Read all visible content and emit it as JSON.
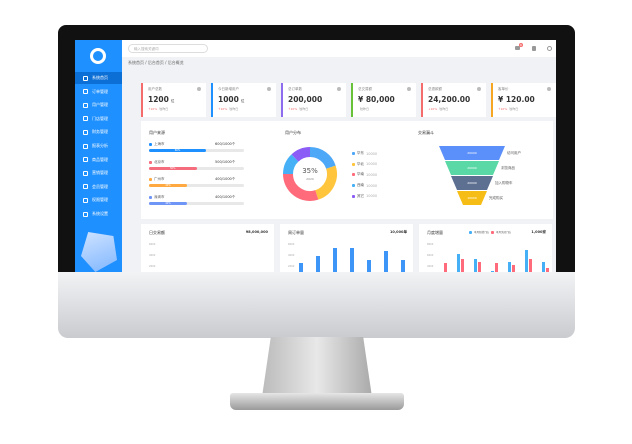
{
  "sidebar": {
    "items": [
      {
        "label": "系统首页"
      },
      {
        "label": "订单管理"
      },
      {
        "label": "用户管理"
      },
      {
        "label": "门店管理"
      },
      {
        "label": "财务管理"
      },
      {
        "label": "报表分析"
      },
      {
        "label": "商品管理"
      },
      {
        "label": "营销管理"
      },
      {
        "label": "会员管理"
      },
      {
        "label": "权限管理"
      },
      {
        "label": "系统设置"
      }
    ],
    "accent": "#1e90ff"
  },
  "header": {
    "search_placeholder": "输入搜索关键词",
    "notification_count": "6"
  },
  "breadcrumb": "系统首页 / 后台首页 / 后台概览",
  "stats": [
    {
      "title": "用户总数",
      "value": "1200",
      "unit": "位",
      "sub": "↑10%",
      "note": "较昨日",
      "color": "#f56c6c"
    },
    {
      "title": "今日新增用户",
      "value": "1000",
      "unit": "位",
      "sub": "↑10%",
      "note": "较昨日",
      "color": "#1e90ff"
    },
    {
      "title": "总订单数",
      "value": "200,000",
      "unit": "",
      "sub": "↑10%",
      "note": "较昨日",
      "color": "#8e6cf0"
    },
    {
      "title": "总交易额",
      "value": "¥ 80,000",
      "unit": "",
      "sub": "",
      "note": "较昨日",
      "color": "#67c23a"
    },
    {
      "title": "总退款额",
      "value": "24,200.00",
      "unit": "",
      "sub": "↓10%",
      "note": "较昨日",
      "color": "#f56c6c"
    },
    {
      "title": "客单价",
      "value": "¥ 120.00",
      "unit": "",
      "sub": "↑10%",
      "note": "较昨日",
      "color": "#f5a623"
    }
  ],
  "sources": {
    "title": "用户来源",
    "items": [
      {
        "label": "上海市",
        "count": "600/1000个",
        "pct": 60,
        "color": "#1e90ff"
      },
      {
        "label": "北京市",
        "count": "500/1000个",
        "pct": 50,
        "color": "#f56c7c"
      },
      {
        "label": "广州市",
        "count": "400/1000个",
        "pct": 40,
        "color": "#ffa940"
      },
      {
        "label": "深圳市",
        "count": "400/1000个",
        "pct": 40,
        "color": "#6f95f7"
      }
    ]
  },
  "distribution": {
    "title": "用户分布",
    "center": "35%",
    "center_sub": "2020",
    "items": [
      {
        "label": "华东",
        "value": "10000",
        "share": 20,
        "color": "#4da8f7"
      },
      {
        "label": "华北",
        "value": "10000",
        "share": 25,
        "color": "#ffc53d"
      },
      {
        "label": "华南",
        "value": "10000",
        "share": 30,
        "color": "#ff6b7a"
      },
      {
        "label": "西南",
        "value": "10000",
        "share": 13,
        "color": "#46b0f7"
      },
      {
        "label": "其它",
        "value": "10000",
        "share": 12,
        "color": "#8b5cf6"
      }
    ]
  },
  "funnel": {
    "title": "交易漏斗",
    "levels": [
      {
        "value": "20000",
        "label": "访问用户",
        "color": "#5b8ff9"
      },
      {
        "value": "20000",
        "label": "浏览商品",
        "color": "#5ad8a6"
      },
      {
        "value": "20000",
        "label": "加入购物车",
        "color": "#5d7092"
      },
      {
        "value": "10000",
        "label": "完成购买",
        "color": "#f6bd16"
      }
    ]
  },
  "bottom": [
    {
      "title": "日交易额",
      "total": "¥8,000,000",
      "yticks": [
        "6000",
        "4000",
        "2000"
      ]
    },
    {
      "title": "周订单量",
      "total": "10,000单",
      "yticks": [
        "6000",
        "4000",
        "2000"
      ],
      "values": [
        30,
        55,
        80,
        80,
        40,
        70,
        40
      ]
    },
    {
      "title": "月度增量",
      "total": "1,000家",
      "legend": [
        "本月新增门店",
        "本月关闭门店"
      ],
      "yticks": [
        "8000",
        "6000",
        "4000"
      ],
      "series": [
        [
          0,
          60,
          45,
          5,
          35,
          75,
          35
        ],
        [
          30,
          45,
          35,
          30,
          25,
          45,
          15
        ]
      ]
    }
  ]
}
